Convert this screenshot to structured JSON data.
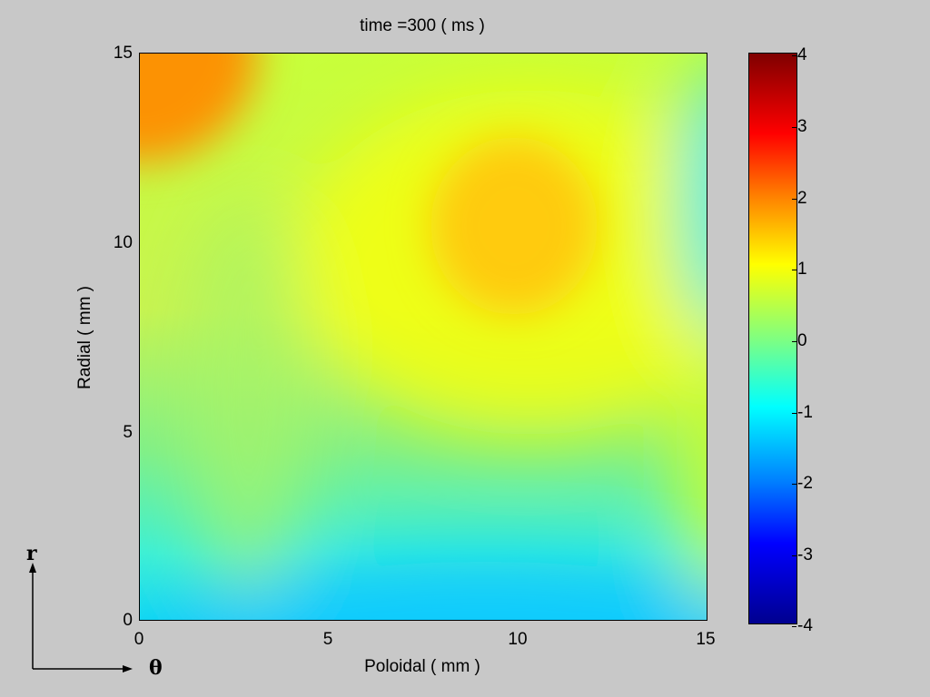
{
  "chart_data": {
    "type": "heatmap",
    "title": "time =300  ( ms )",
    "xlabel": "Poloidal  ( mm )",
    "ylabel": "Radial  ( mm )",
    "xlim": [
      0,
      15
    ],
    "ylim": [
      0,
      15
    ],
    "xticks": [
      "0",
      "5",
      "10",
      "15"
    ],
    "yticks": [
      "0",
      "5",
      "10",
      "15"
    ],
    "colorbar": {
      "min": -4,
      "max": 4,
      "ticks": [
        "4",
        "3",
        "2",
        "1",
        "0",
        "-1",
        "-2",
        "-3",
        "-4"
      ],
      "colormap": "jet"
    },
    "features": [
      {
        "x": 9.8,
        "y": 10.5,
        "value": 1.6
      },
      {
        "x": 0,
        "y": 15,
        "value": 2.2
      },
      {
        "x": 15,
        "y": 11.5,
        "value": -0.8
      },
      {
        "x": 9.5,
        "y": 0.2,
        "value": -1.1
      },
      {
        "x": 3,
        "y": 9,
        "value": 0.4
      },
      {
        "x": 2.5,
        "y": 3,
        "value": -0.2
      }
    ]
  },
  "annotations": {
    "r_label": "r",
    "theta_label": "θ"
  }
}
